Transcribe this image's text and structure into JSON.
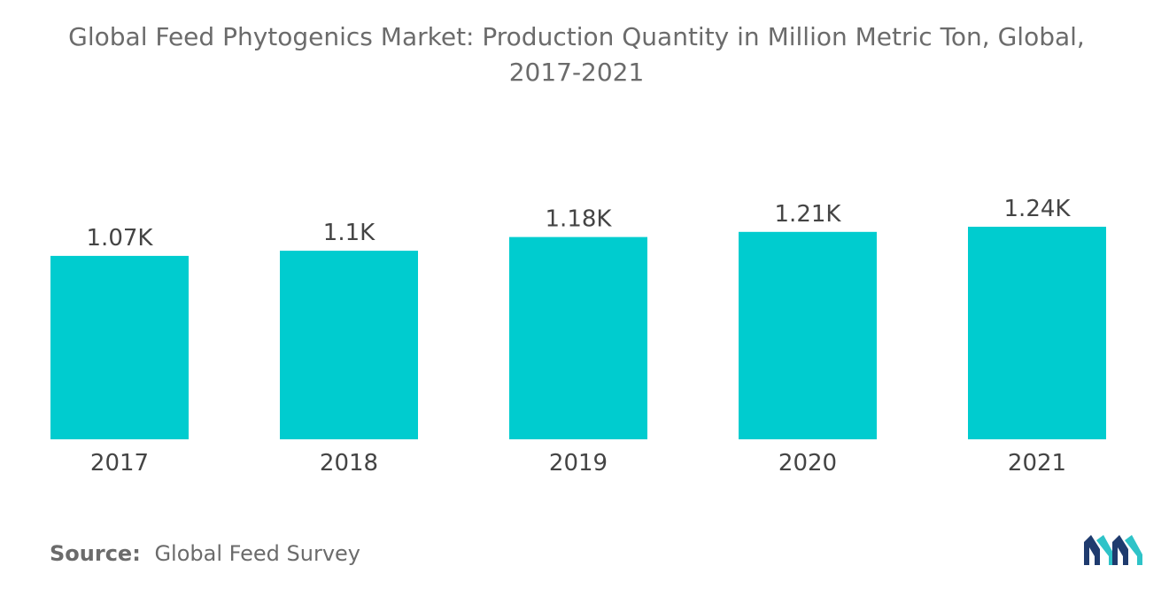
{
  "title_lines": [
    "Global Feed Phytogenics Market: Production Quantity in Million Metric Ton, Global,",
    "2017-2021"
  ],
  "source": {
    "label": "Source:",
    "text": "Global Feed Survey"
  },
  "colors": {
    "bar": "#00cccf",
    "text": "#6b6b6b",
    "logo_dark": "#1f3b6e",
    "logo_light": "#2ec3c8"
  },
  "chart_data": {
    "type": "bar",
    "title": "Global Feed Phytogenics Market: Production Quantity in Million Metric Ton, Global, 2017-2021",
    "categories": [
      "2017",
      "2018",
      "2019",
      "2020",
      "2021"
    ],
    "values": [
      1070,
      1100,
      1180,
      1210,
      1240
    ],
    "value_labels": [
      "1.07K",
      "1.1K",
      "1.18K",
      "1.21K",
      "1.24K"
    ],
    "xlabel": "",
    "ylabel": "",
    "ylim": [
      0,
      1240
    ],
    "grid": false,
    "legend": "none"
  }
}
